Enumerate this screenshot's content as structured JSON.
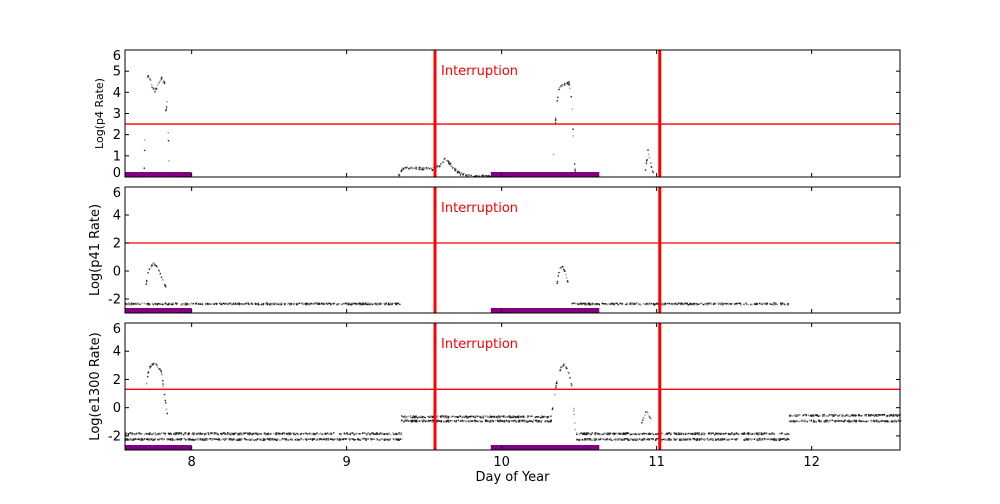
{
  "chart_data": {
    "type": "scatter",
    "xlabel": "Day of Year",
    "xlim": [
      7.57,
      12.57
    ],
    "xticks": [
      "8",
      "9",
      "10",
      "11",
      "12"
    ],
    "xtick_values": [
      8,
      9,
      10,
      11,
      12
    ],
    "colors": {
      "points": "#000000",
      "threshold": "#ff0000",
      "interruption": "#ff0000",
      "bar": "#800080"
    },
    "panels": [
      {
        "ylabel": "Log(p4 Rate)",
        "ylim": [
          0,
          6
        ],
        "yticks": [
          "0",
          "1",
          "2",
          "3",
          "4",
          "5",
          "6"
        ],
        "ytick_values": [
          0,
          1,
          2,
          3,
          4,
          5,
          6
        ],
        "threshold": 2.5,
        "annotation": "Interruption",
        "series": [
          {
            "x": [
              7.69,
              7.7,
              7.72,
              7.74,
              7.76,
              7.78,
              7.8,
              7.82,
              7.83,
              7.84,
              7.85
            ],
            "y": [
              0.4,
              4.5,
              4.9,
              4.3,
              4.1,
              4.4,
              4.7,
              4.5,
              3.0,
              3.8,
              0.5
            ]
          },
          {
            "x": [
              9.33,
              9.36,
              9.45,
              9.55,
              9.6,
              9.63,
              9.67,
              9.72,
              9.8,
              9.93
            ],
            "y": [
              0.05,
              0.45,
              0.45,
              0.4,
              0.6,
              0.9,
              0.6,
              0.2,
              0.08,
              0.05
            ]
          },
          {
            "x": [
              10.33,
              10.35,
              10.37,
              10.4,
              10.43,
              10.45,
              10.46,
              10.47
            ],
            "y": [
              1.0,
              3.5,
              4.3,
              4.4,
              4.5,
              3.5,
              1.5,
              0.3
            ]
          },
          {
            "x": [
              10.92,
              10.94,
              10.96,
              10.98
            ],
            "y": [
              0.1,
              1.3,
              0.6,
              0.1
            ]
          }
        ]
      },
      {
        "ylabel": "Log(p41 Rate)",
        "ylim": [
          -3,
          6
        ],
        "yticks": [
          "-2",
          "0",
          "2",
          "4",
          "6"
        ],
        "ytick_values": [
          -2,
          0,
          2,
          4,
          6
        ],
        "threshold": 2.0,
        "annotation": "Interruption",
        "series": [
          {
            "x": [
              7.57,
              9.35
            ],
            "y": [
              -2.3,
              -2.3
            ]
          },
          {
            "x": [
              7.7,
              7.72,
              7.75,
              7.78,
              7.81,
              7.83
            ],
            "y": [
              -1.0,
              0.2,
              0.6,
              0.2,
              -0.6,
              -1.1
            ]
          },
          {
            "x": [
              10.35,
              10.37,
              10.39,
              10.41,
              10.43
            ],
            "y": [
              -1.0,
              0.2,
              0.4,
              -0.2,
              -1.1
            ]
          },
          {
            "x": [
              10.45,
              11.85
            ],
            "y": [
              -2.3,
              -2.3
            ]
          }
        ]
      },
      {
        "ylabel": "Log(e1300 Rate)",
        "ylim": [
          -3,
          6
        ],
        "yticks": [
          "-2",
          "0",
          "2",
          "4",
          "6"
        ],
        "ytick_values": [
          -2,
          0,
          2,
          4,
          6
        ],
        "threshold": 1.3,
        "annotation": "Interruption",
        "series": [
          {
            "x": [
              7.57,
              9.35
            ],
            "y": [
              -1.8,
              -1.8
            ]
          },
          {
            "x": [
              7.57,
              9.35
            ],
            "y": [
              -2.2,
              -2.2
            ]
          },
          {
            "x": [
              7.7,
              7.72,
              7.74,
              7.76,
              7.78,
              7.8,
              7.82,
              7.84
            ],
            "y": [
              1.5,
              2.8,
              3.1,
              3.2,
              2.9,
              2.6,
              1.0,
              -0.5
            ]
          },
          {
            "x": [
              9.35,
              10.32
            ],
            "y": [
              -0.6,
              -0.6
            ]
          },
          {
            "x": [
              9.35,
              10.32
            ],
            "y": [
              -0.9,
              -0.9
            ]
          },
          {
            "x": [
              10.32,
              10.35,
              10.38,
              10.4,
              10.43,
              10.45,
              10.47
            ],
            "y": [
              -0.3,
              1.8,
              2.9,
              3.1,
              2.5,
              1.5,
              -1.5
            ]
          },
          {
            "x": [
              10.48,
              11.85
            ],
            "y": [
              -1.8,
              -1.8
            ]
          },
          {
            "x": [
              10.48,
              11.85
            ],
            "y": [
              -2.2,
              -2.2
            ]
          },
          {
            "x": [
              10.9,
              10.93,
              10.96
            ],
            "y": [
              -1.0,
              -0.2,
              -0.8
            ]
          },
          {
            "x": [
              11.85,
              12.57
            ],
            "y": [
              -0.5,
              -0.5
            ]
          },
          {
            "x": [
              11.85,
              12.57
            ],
            "y": [
              -0.9,
              -0.9
            ]
          }
        ]
      }
    ],
    "interruptions": [
      9.57,
      11.02
    ],
    "bars": [
      [
        7.57,
        8.0
      ],
      [
        9.93,
        10.63
      ]
    ]
  }
}
